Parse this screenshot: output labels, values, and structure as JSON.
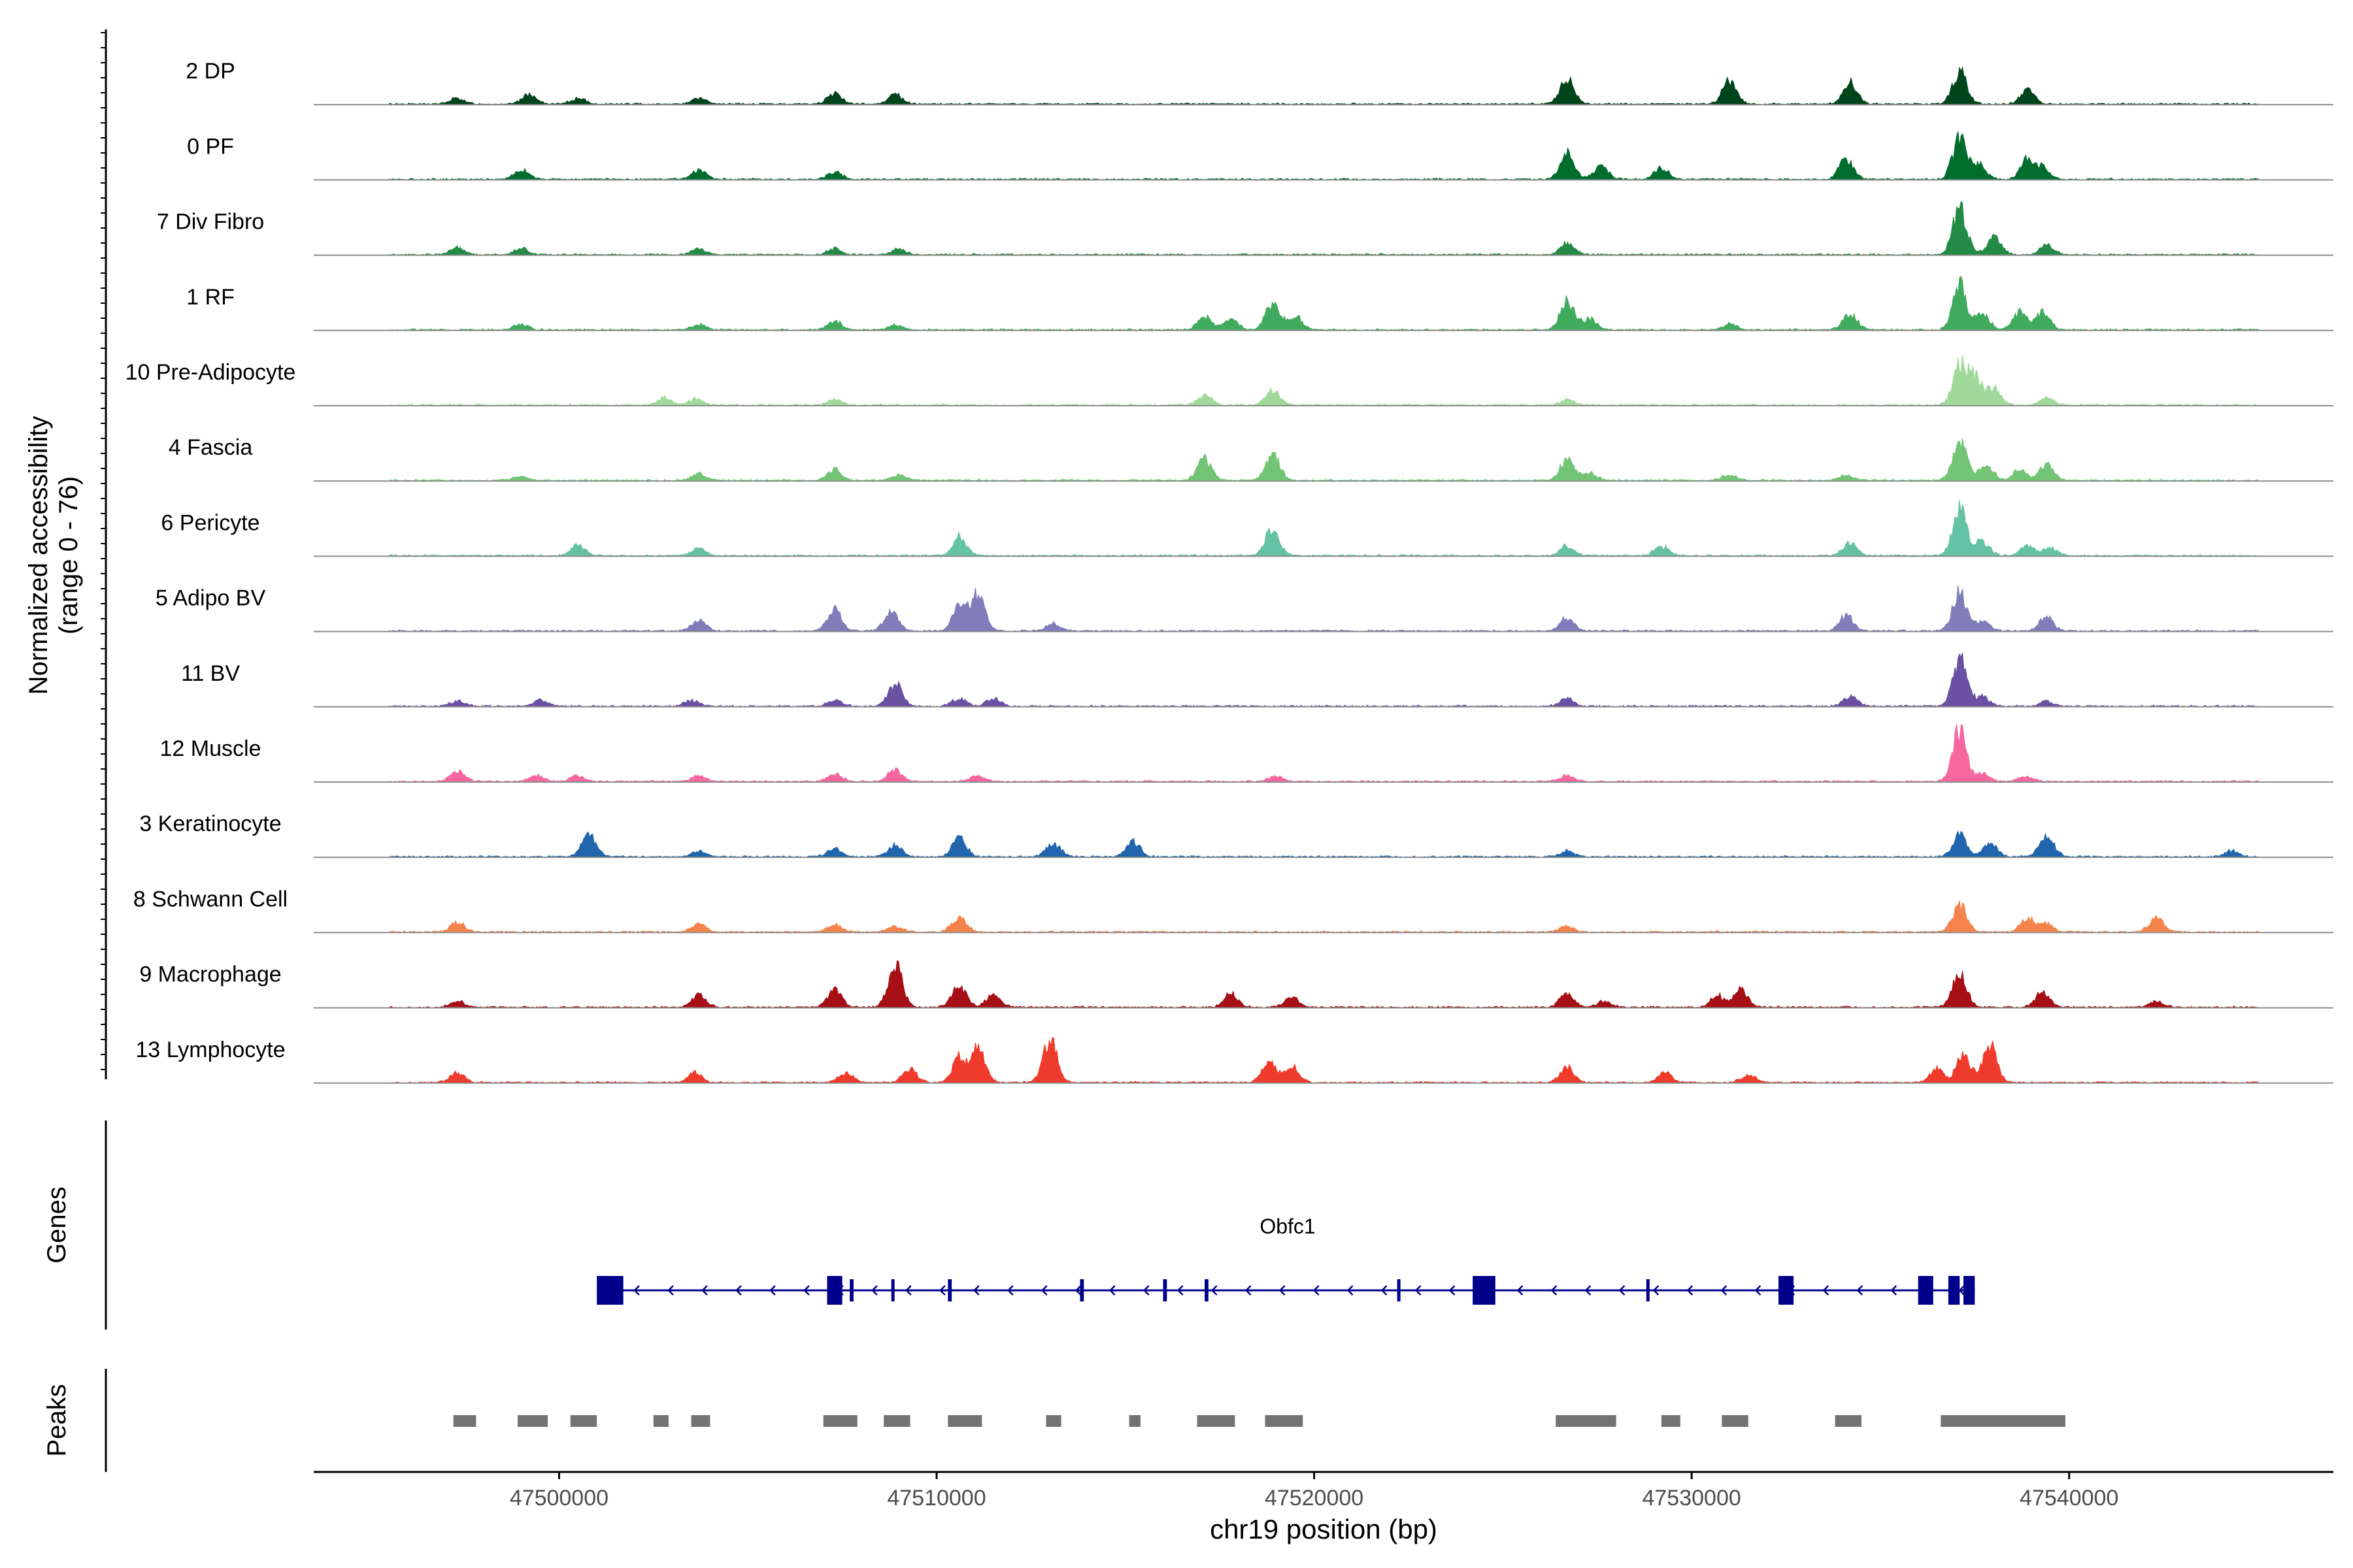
{
  "chart_data": {
    "type": "area",
    "title": "",
    "region": {
      "chrom": "chr19",
      "start": 47493500,
      "end": 47547000
    },
    "xlabel": "chr19 position (bp)",
    "x_ticks": [
      47500000,
      47510000,
      47520000,
      47530000,
      47540000
    ],
    "ylabel_line1": "Normalized accessibility",
    "ylabel_line2": "(range 0 - 76)",
    "ylim": [
      0,
      76
    ],
    "tracks": [
      {
        "label": "2 DP",
        "color": "#00441b",
        "peaks": [
          [
            47497300,
            6
          ],
          [
            47499200,
            10
          ],
          [
            47500500,
            6
          ],
          [
            47503700,
            6
          ],
          [
            47507300,
            11
          ],
          [
            47508900,
            10
          ],
          [
            47526700,
            26
          ],
          [
            47531000,
            24
          ],
          [
            47534200,
            22
          ],
          [
            47537100,
            34
          ],
          [
            47538900,
            14
          ]
        ]
      },
      {
        "label": "0 PF",
        "color": "#006d2c",
        "peaks": [
          [
            47499000,
            10
          ],
          [
            47503700,
            10
          ],
          [
            47507300,
            8
          ],
          [
            47526700,
            28
          ],
          [
            47527600,
            14
          ],
          [
            47529200,
            12
          ],
          [
            47534100,
            22
          ],
          [
            47537100,
            42
          ],
          [
            47537600,
            16
          ],
          [
            47538900,
            22
          ],
          [
            47539300,
            12
          ]
        ]
      },
      {
        "label": "7 Div Fibro",
        "color": "#238b45",
        "peaks": [
          [
            47497300,
            8
          ],
          [
            47499000,
            6
          ],
          [
            47503700,
            6
          ],
          [
            47507300,
            6
          ],
          [
            47509000,
            6
          ],
          [
            47526700,
            12
          ],
          [
            47537100,
            48
          ],
          [
            47538000,
            18
          ],
          [
            47539400,
            10
          ]
        ]
      },
      {
        "label": "1 RF",
        "color": "#41ab5d",
        "peaks": [
          [
            47499000,
            6
          ],
          [
            47503700,
            6
          ],
          [
            47507300,
            9
          ],
          [
            47508900,
            5
          ],
          [
            47517100,
            14
          ],
          [
            47517800,
            10
          ],
          [
            47518900,
            28
          ],
          [
            47519500,
            14
          ],
          [
            47526700,
            30
          ],
          [
            47527300,
            12
          ],
          [
            47531000,
            6
          ],
          [
            47534200,
            16
          ],
          [
            47537100,
            46
          ],
          [
            47537700,
            16
          ],
          [
            47538700,
            18
          ],
          [
            47539300,
            18
          ]
        ]
      },
      {
        "label": "10 Pre-Adipocyte",
        "color": "#a1d99b",
        "peaks": [
          [
            47502800,
            8
          ],
          [
            47503600,
            6
          ],
          [
            47507300,
            6
          ],
          [
            47517100,
            10
          ],
          [
            47518900,
            16
          ],
          [
            47526700,
            6
          ],
          [
            47537100,
            40
          ],
          [
            47537500,
            28
          ],
          [
            47538000,
            18
          ],
          [
            47539400,
            8
          ]
        ]
      },
      {
        "label": "4 Fascia",
        "color": "#74c476",
        "peaks": [
          [
            47499000,
            5
          ],
          [
            47503700,
            7
          ],
          [
            47507300,
            12
          ],
          [
            47509000,
            6
          ],
          [
            47517100,
            22
          ],
          [
            47518900,
            28
          ],
          [
            47526700,
            22
          ],
          [
            47527300,
            8
          ],
          [
            47531000,
            6
          ],
          [
            47534100,
            6
          ],
          [
            47537100,
            40
          ],
          [
            47537800,
            18
          ],
          [
            47538700,
            12
          ],
          [
            47539400,
            16
          ]
        ]
      },
      {
        "label": "6 Pericyte",
        "color": "#66c2a4",
        "peaks": [
          [
            47500500,
            12
          ],
          [
            47503700,
            8
          ],
          [
            47510600,
            20
          ],
          [
            47518900,
            30
          ],
          [
            47526700,
            10
          ],
          [
            47529200,
            10
          ],
          [
            47534200,
            14
          ],
          [
            47537100,
            48
          ],
          [
            47537700,
            14
          ],
          [
            47538900,
            10
          ],
          [
            47539500,
            8
          ]
        ]
      },
      {
        "label": "5 Adipo BV",
        "color": "#807dba",
        "peaks": [
          [
            47503700,
            12
          ],
          [
            47507300,
            22
          ],
          [
            47508800,
            20
          ],
          [
            47510600,
            26
          ],
          [
            47511100,
            40
          ],
          [
            47513100,
            8
          ],
          [
            47526700,
            14
          ],
          [
            47534100,
            16
          ],
          [
            47537100,
            40
          ],
          [
            47537700,
            10
          ],
          [
            47539400,
            14
          ]
        ]
      },
      {
        "label": "11 BV",
        "color": "#6a51a3",
        "peaks": [
          [
            47497300,
            5
          ],
          [
            47499500,
            7
          ],
          [
            47503500,
            6
          ],
          [
            47507300,
            6
          ],
          [
            47508900,
            24
          ],
          [
            47510600,
            8
          ],
          [
            47511500,
            8
          ],
          [
            47526700,
            8
          ],
          [
            47534200,
            10
          ],
          [
            47537100,
            50
          ],
          [
            47537700,
            10
          ],
          [
            47539400,
            5
          ]
        ]
      },
      {
        "label": "12 Muscle",
        "color": "#f768a1",
        "peaks": [
          [
            47497300,
            12
          ],
          [
            47499400,
            6
          ],
          [
            47500500,
            6
          ],
          [
            47503700,
            6
          ],
          [
            47507300,
            8
          ],
          [
            47508900,
            12
          ],
          [
            47511100,
            6
          ],
          [
            47519000,
            5
          ],
          [
            47526700,
            6
          ],
          [
            47537100,
            54
          ],
          [
            47537700,
            8
          ],
          [
            47538800,
            5
          ]
        ]
      },
      {
        "label": "3 Keratinocyte",
        "color": "#2166ac",
        "peaks": [
          [
            47500800,
            24
          ],
          [
            47503700,
            6
          ],
          [
            47507300,
            8
          ],
          [
            47508900,
            12
          ],
          [
            47510600,
            20
          ],
          [
            47513100,
            14
          ],
          [
            47515200,
            16
          ],
          [
            47526700,
            6
          ],
          [
            47537100,
            22
          ],
          [
            47537900,
            14
          ],
          [
            47539400,
            24
          ],
          [
            47544300,
            6
          ]
        ]
      },
      {
        "label": "8 Schwann Cell",
        "color": "#f4844c",
        "peaks": [
          [
            47497300,
            10
          ],
          [
            47503700,
            8
          ],
          [
            47507300,
            8
          ],
          [
            47508900,
            6
          ],
          [
            47510600,
            16
          ],
          [
            47526700,
            6
          ],
          [
            47537100,
            28
          ],
          [
            47538900,
            14
          ],
          [
            47539400,
            8
          ],
          [
            47542300,
            14
          ]
        ]
      },
      {
        "label": "9 Macrophage",
        "color": "#a50f15",
        "peaks": [
          [
            47497300,
            6
          ],
          [
            47503700,
            14
          ],
          [
            47507300,
            18
          ],
          [
            47508900,
            46
          ],
          [
            47510600,
            22
          ],
          [
            47511500,
            14
          ],
          [
            47517800,
            14
          ],
          [
            47519400,
            10
          ],
          [
            47526700,
            14
          ],
          [
            47527700,
            6
          ],
          [
            47530700,
            12
          ],
          [
            47531300,
            18
          ],
          [
            47537100,
            36
          ],
          [
            47539300,
            16
          ],
          [
            47542300,
            6
          ]
        ]
      },
      {
        "label": "13 Lymphocyte",
        "color": "#ef3b2c",
        "peaks": [
          [
            47497300,
            10
          ],
          [
            47503600,
            10
          ],
          [
            47507600,
            10
          ],
          [
            47509300,
            14
          ],
          [
            47510600,
            26
          ],
          [
            47511100,
            34
          ],
          [
            47513000,
            46
          ],
          [
            47518800,
            22
          ],
          [
            47519400,
            18
          ],
          [
            47526700,
            16
          ],
          [
            47529300,
            10
          ],
          [
            47531500,
            8
          ],
          [
            47536500,
            14
          ],
          [
            47537200,
            28
          ],
          [
            47537900,
            40
          ]
        ]
      }
    ],
    "genes_label": "Genes",
    "gene": {
      "name": "Obfc1",
      "strand": "-",
      "start": 47501000,
      "end": 47537500,
      "exons": [
        [
          47501000,
          47501700
        ],
        [
          47507100,
          47507500
        ],
        [
          47507700,
          47507800
        ],
        [
          47508800,
          47508850
        ],
        [
          47510300,
          47510400
        ],
        [
          47513800,
          47513900
        ],
        [
          47516000,
          47516100
        ],
        [
          47517100,
          47517200
        ],
        [
          47522200,
          47522250
        ],
        [
          47524200,
          47524800
        ],
        [
          47528800,
          47528850
        ],
        [
          47532300,
          47532700
        ],
        [
          47536000,
          47536400
        ],
        [
          47536800,
          47537100
        ],
        [
          47537200,
          47537500
        ]
      ]
    },
    "peaks_label": "Peaks",
    "peak_regions": [
      [
        47497200,
        47497800
      ],
      [
        47498900,
        47499700
      ],
      [
        47500300,
        47501000
      ],
      [
        47502500,
        47502900
      ],
      [
        47503500,
        47504000
      ],
      [
        47507000,
        47507900
      ],
      [
        47508600,
        47509300
      ],
      [
        47510300,
        47511200
      ],
      [
        47512900,
        47513300
      ],
      [
        47515100,
        47515400
      ],
      [
        47516900,
        47517900
      ],
      [
        47518700,
        47519700
      ],
      [
        47526400,
        47528000
      ],
      [
        47529200,
        47529700
      ],
      [
        47530800,
        47531500
      ],
      [
        47533800,
        47534500
      ],
      [
        47536600,
        47539900
      ]
    ]
  }
}
